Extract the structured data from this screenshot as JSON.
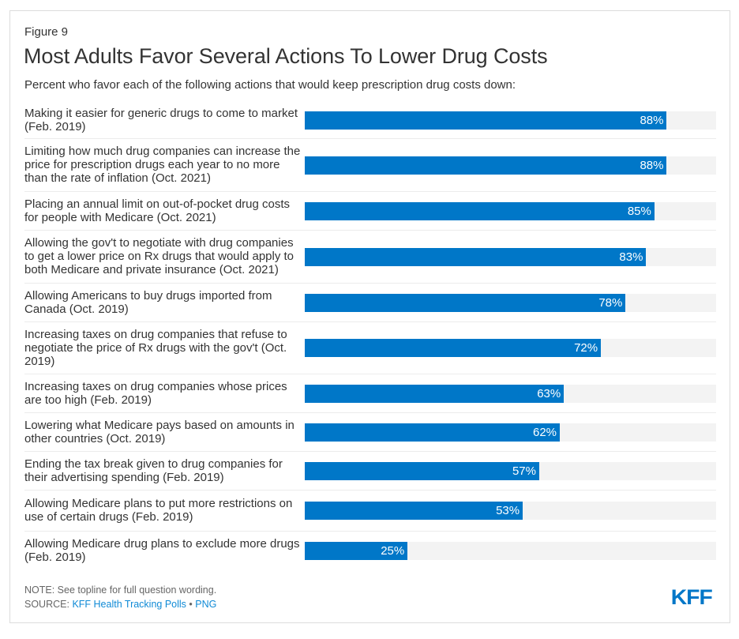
{
  "figure_label": "Figure 9",
  "title": "Most Adults Favor Several Actions To Lower Drug Costs",
  "subtitle": "Percent who favor each of the following actions that would keep prescription drug costs down:",
  "colors": {
    "bar": "#0077c8",
    "track": "#f3f3f3",
    "link": "#0f8ad6",
    "text": "#333333"
  },
  "footer": {
    "note": "NOTE: See topline for full question wording.",
    "source_prefix": "SOURCE: ",
    "source_link": "KFF Health Tracking Polls",
    "separator": " • ",
    "png_link": "PNG",
    "logo": "KFF"
  },
  "chart_data": {
    "type": "bar",
    "orientation": "horizontal",
    "title": "Most Adults Favor Several Actions To Lower Drug Costs",
    "subtitle": "Percent who favor each of the following actions that would keep prescription drug costs down:",
    "xlabel": "",
    "ylabel": "",
    "xlim": [
      0,
      100
    ],
    "grid": false,
    "legend": "none",
    "categories": [
      "Making it easier for generic drugs to come to market (Feb. 2019)",
      "Limiting how much drug companies can increase the price for prescription drugs each year to no more than the rate of inflation (Oct. 2021)",
      "Placing an annual limit on out-of-pocket drug costs for people with Medicare (Oct. 2021)",
      "Allowing the gov't to negotiate with drug companies to get a lower price on Rx drugs that would apply to both Medicare and private insurance (Oct. 2021)",
      "Allowing Americans to buy drugs imported from Canada (Oct. 2019)",
      "Increasing taxes on drug companies that refuse to negotiate the price of Rx drugs with the gov't (Oct. 2019)",
      "Increasing taxes on drug companies whose prices are too high (Feb. 2019)",
      "Lowering what Medicare pays based on amounts in other countries (Oct. 2019)",
      "Ending the tax break given to drug companies for their advertising spending (Feb. 2019)",
      "Allowing Medicare plans to put more restrictions on use of certain drugs (Feb. 2019)",
      "Allowing Medicare drug plans to exclude more drugs (Feb. 2019)"
    ],
    "values": [
      88,
      88,
      85,
      83,
      78,
      72,
      63,
      62,
      57,
      53,
      25
    ],
    "data_labels": [
      "88%",
      "88%",
      "85%",
      "83%",
      "78%",
      "72%",
      "63%",
      "62%",
      "57%",
      "53%",
      "25%"
    ],
    "unit": "%"
  }
}
